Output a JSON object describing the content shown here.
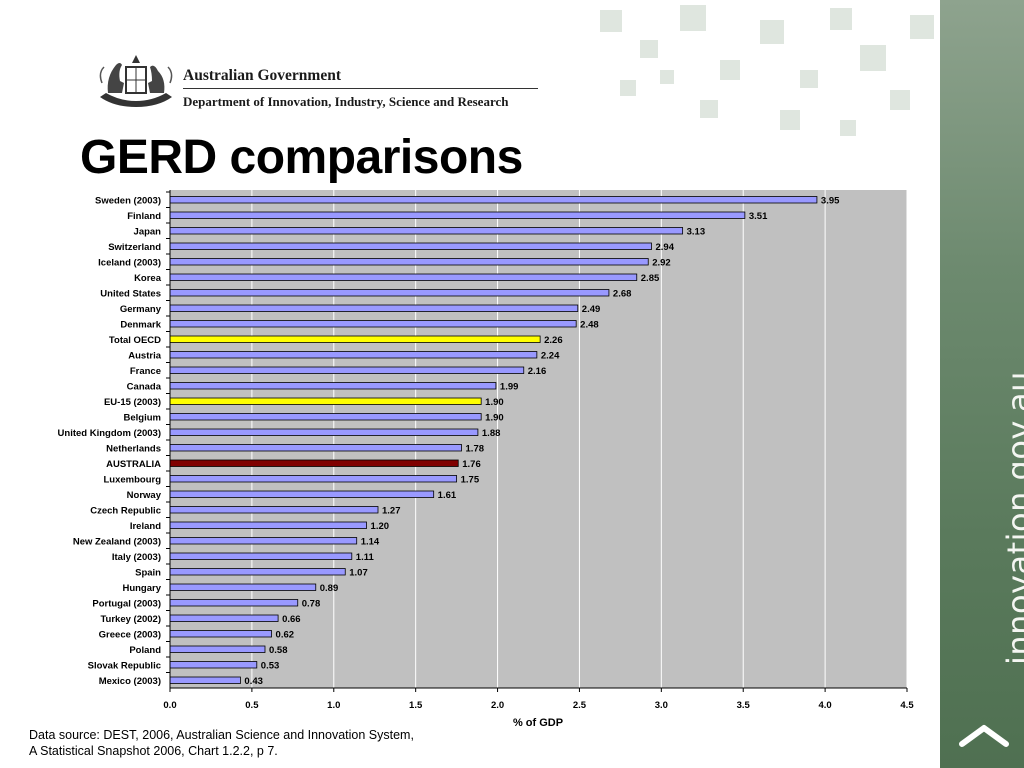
{
  "header": {
    "government": "Australian Government",
    "department": "Department of Innovation, Industry, Science and Research"
  },
  "page_title": "GERD comparisons",
  "sidebar": {
    "site": "innovation.gov.au"
  },
  "source": {
    "line1": "Data source: DEST, 2006, Australian Science and Innovation System,",
    "line2": "A Statistical Snapshot 2006, Chart 1.2.2, p 7."
  },
  "colors": {
    "default_bar": "#9999ff",
    "highlight_bar": "#ffff00",
    "australia_bar": "#800000",
    "plot_bg": "#c0c0c0"
  },
  "chart_data": {
    "type": "bar",
    "orientation": "horizontal",
    "xlabel": "% of GDP",
    "xlim": [
      0,
      4.5
    ],
    "xticks": [
      "0.0",
      "0.5",
      "1.0",
      "1.5",
      "2.0",
      "2.5",
      "3.0",
      "3.5",
      "4.0",
      "4.5"
    ],
    "grid": true,
    "categories": [
      "Sweden (2003)",
      "Finland",
      "Japan",
      "Switzerland",
      "Iceland (2003)",
      "Korea",
      "United States",
      "Germany",
      "Denmark",
      "Total OECD",
      "Austria",
      "France",
      "Canada",
      "EU-15 (2003)",
      "Belgium",
      "United Kingdom (2003)",
      "Netherlands",
      "AUSTRALIA",
      "Luxembourg",
      "Norway",
      "Czech Republic",
      "Ireland",
      "New Zealand (2003)",
      "Italy (2003)",
      "Spain",
      "Hungary",
      "Portugal (2003)",
      "Turkey (2002)",
      "Greece (2003)",
      "Poland",
      "Slovak Republic",
      "Mexico (2003)"
    ],
    "values": [
      3.95,
      3.51,
      3.13,
      2.94,
      2.92,
      2.85,
      2.68,
      2.49,
      2.48,
      2.26,
      2.24,
      2.16,
      1.99,
      1.9,
      1.9,
      1.88,
      1.78,
      1.76,
      1.75,
      1.61,
      1.27,
      1.2,
      1.14,
      1.11,
      1.07,
      0.89,
      0.78,
      0.66,
      0.62,
      0.58,
      0.53,
      0.43
    ],
    "value_labels": [
      "3.95",
      "3.51",
      "3.13",
      "2.94",
      "2.92",
      "2.85",
      "2.68",
      "2.49",
      "2.48",
      "2.26",
      "2.24",
      "2.16",
      "1.99",
      "1.90",
      "1.90",
      "1.88",
      "1.78",
      "1.76",
      "1.75",
      "1.61",
      "1.27",
      "1.20",
      "1.14",
      "1.11",
      "1.07",
      "0.89",
      "0.78",
      "0.66",
      "0.62",
      "0.58",
      "0.53",
      "0.43"
    ],
    "highlight": {
      "Total OECD": "yellow",
      "EU-15 (2003)": "yellow",
      "AUSTRALIA": "darkred"
    }
  }
}
